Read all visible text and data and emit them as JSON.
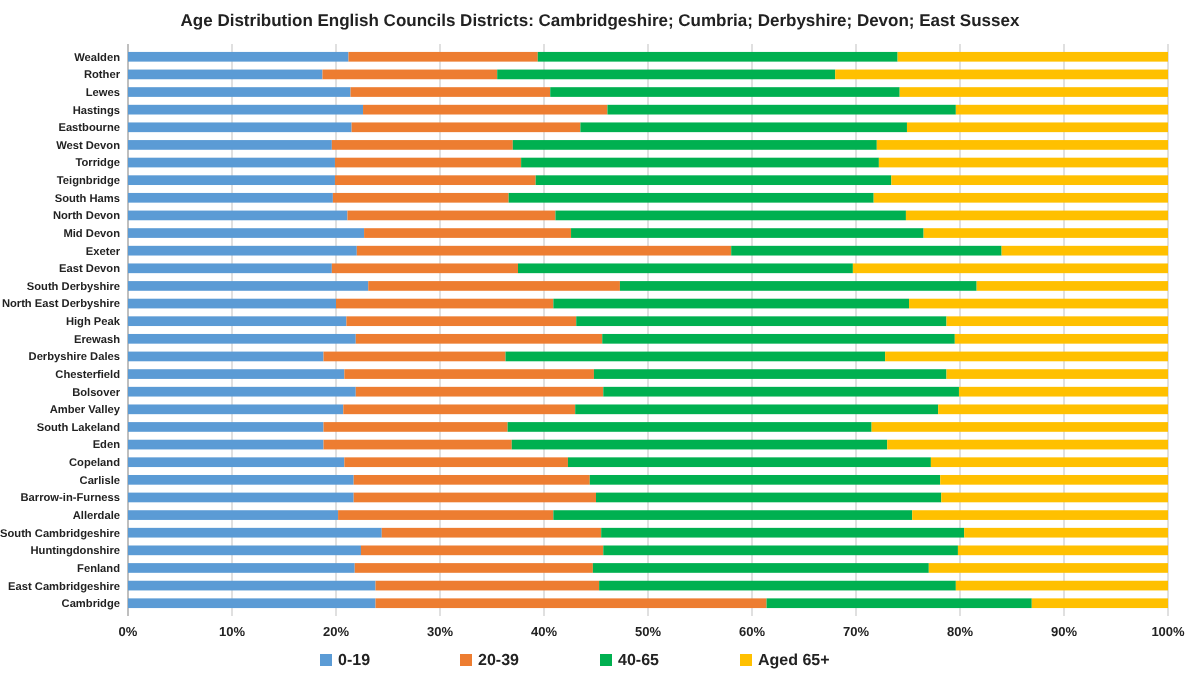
{
  "chart_data": {
    "type": "bar",
    "orientation": "horizontal",
    "stacked": true,
    "title": "Age Distribution English Councils Districts: Cambridgeshire; Cumbria; Derbyshire; Devon; East Sussex",
    "categories": [
      "Wealden",
      "Rother",
      "Lewes",
      "Hastings",
      "Eastbourne",
      "West Devon",
      "Torridge",
      "Teignbridge",
      "South Hams",
      "North Devon",
      "Mid Devon",
      "Exeter",
      "East Devon",
      "South Derbyshire",
      "North East Derbyshire",
      "High Peak",
      "Erewash",
      "Derbyshire Dales",
      "Chesterfield",
      "Bolsover",
      "Amber Valley",
      "South Lakeland",
      "Eden",
      "Copeland",
      "Carlisle",
      "Barrow-in-Furness",
      "Allerdale",
      "South Cambridgeshire",
      "Huntingdonshire",
      "Fenland",
      "East Cambridgeshire",
      "Cambridge"
    ],
    "series": [
      {
        "name": "0-19",
        "color": "#5b9bd5",
        "values": [
          21.2,
          18.7,
          21.4,
          22.6,
          21.5,
          19.6,
          19.9,
          19.9,
          19.7,
          21.1,
          22.7,
          22.0,
          19.6,
          23.1,
          20.0,
          21.0,
          21.9,
          18.8,
          20.8,
          21.9,
          20.7,
          18.8,
          18.8,
          20.8,
          21.7,
          21.7,
          20.2,
          24.4,
          22.4,
          21.8,
          23.8,
          23.8
        ]
      },
      {
        "name": "20-39",
        "color": "#ed7d31",
        "values": [
          18.2,
          16.8,
          19.2,
          23.5,
          22.0,
          17.4,
          17.9,
          19.3,
          16.9,
          20.0,
          19.9,
          36.0,
          17.9,
          24.2,
          20.9,
          22.1,
          23.7,
          17.5,
          24.0,
          23.8,
          22.3,
          17.7,
          18.1,
          21.5,
          22.7,
          23.3,
          20.7,
          21.1,
          23.3,
          22.9,
          21.5,
          37.6
        ]
      },
      {
        "name": "40-65",
        "color": "#00b050",
        "values": [
          34.6,
          32.5,
          33.6,
          33.5,
          31.4,
          35.0,
          34.4,
          34.2,
          35.1,
          33.7,
          33.9,
          26.0,
          32.2,
          34.3,
          34.2,
          35.6,
          33.9,
          36.5,
          33.9,
          34.2,
          34.9,
          35.0,
          36.1,
          34.9,
          33.7,
          33.2,
          34.5,
          34.9,
          34.1,
          32.3,
          34.3,
          25.5
        ]
      },
      {
        "name": "Aged 65+",
        "color": "#ffc000",
        "values": [
          26.0,
          32.0,
          25.8,
          20.4,
          25.1,
          28.0,
          27.8,
          26.6,
          28.3,
          25.2,
          23.5,
          16.0,
          30.3,
          18.4,
          24.9,
          21.3,
          20.5,
          27.2,
          21.3,
          20.1,
          22.1,
          28.5,
          27.0,
          22.8,
          21.9,
          21.8,
          24.6,
          19.6,
          20.2,
          23.0,
          20.4,
          13.1
        ]
      }
    ],
    "xlim": [
      0,
      100
    ],
    "xticks": [
      {
        "value": 0,
        "label": "0%"
      },
      {
        "value": 10,
        "label": "10%"
      },
      {
        "value": 20,
        "label": "20%"
      },
      {
        "value": 30,
        "label": "30%"
      },
      {
        "value": 40,
        "label": "40%"
      },
      {
        "value": 50,
        "label": "50%"
      },
      {
        "value": 60,
        "label": "60%"
      },
      {
        "value": 70,
        "label": "70%"
      },
      {
        "value": 80,
        "label": "80%"
      },
      {
        "value": 90,
        "label": "90%"
      },
      {
        "value": 100,
        "label": "100%"
      }
    ],
    "grid": "x",
    "legend": "bottom"
  }
}
